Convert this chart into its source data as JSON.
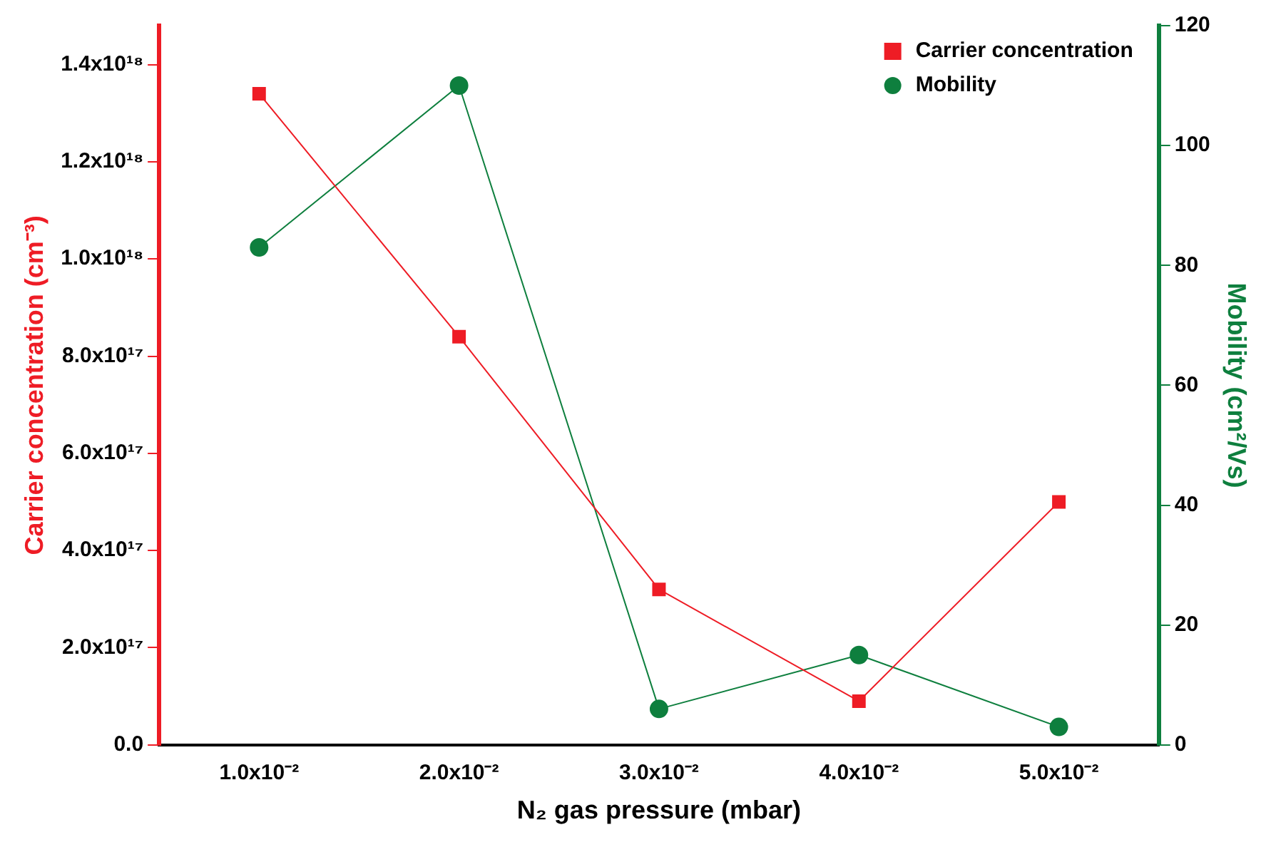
{
  "chart_data": {
    "type": "line",
    "xlabel": "N₂ gas pressure (mbar)",
    "ylabel": "Carrier concentration (cm⁻³)",
    "y2label": "Mobility (cm²/Vs)",
    "x": [
      0.01,
      0.02,
      0.03,
      0.04,
      0.05
    ],
    "xlim": [
      0.005,
      0.055
    ],
    "xticks": [
      {
        "value": 0.01,
        "label": "1.0x10⁻²"
      },
      {
        "value": 0.02,
        "label": "2.0x10⁻²"
      },
      {
        "value": 0.03,
        "label": "3.0x10⁻²"
      },
      {
        "value": 0.04,
        "label": "4.0x10⁻²"
      },
      {
        "value": 0.05,
        "label": "5.0x10⁻²"
      }
    ],
    "ylim": [
      0,
      1.48e+18
    ],
    "yticks": [
      {
        "value": 0,
        "label": "0.0"
      },
      {
        "value": 2e+17,
        "label": "2.0x10¹⁷"
      },
      {
        "value": 4e+17,
        "label": "4.0x10¹⁷"
      },
      {
        "value": 6e+17,
        "label": "6.0x10¹⁷"
      },
      {
        "value": 8e+17,
        "label": "8.0x10¹⁷"
      },
      {
        "value": 1e+18,
        "label": "1.0x10¹⁸"
      },
      {
        "value": 1.2e+18,
        "label": "1.2x10¹⁸"
      },
      {
        "value": 1.4e+18,
        "label": "1.4x10¹⁸"
      }
    ],
    "y2lim": [
      0,
      120
    ],
    "y2ticks": [
      0,
      20,
      40,
      60,
      80,
      100,
      120
    ],
    "series": [
      {
        "name": "Carrier concentration",
        "color": "#ee1c25",
        "marker": "square",
        "values": [
          1.34e+18,
          8.4e+17,
          3.2e+17,
          9e+16,
          5e+17
        ]
      },
      {
        "name": "Mobility",
        "color": "#0e7f3e",
        "marker": "circle",
        "axis": "y2",
        "values": [
          83,
          110,
          6,
          15,
          3
        ]
      }
    ],
    "legend": "top right",
    "grid": false
  }
}
